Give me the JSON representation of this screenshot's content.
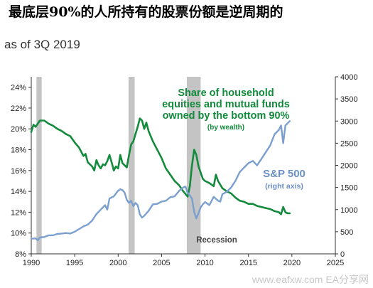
{
  "title": "最底层90%的人所持有的股票份额是逆周期的",
  "subtitle": "as of 3Q 2019",
  "watermark": "www.eafxw.com  EA分享网",
  "colors": {
    "green": "#138a3c",
    "blue": "#7b9fcf",
    "recession": "#c4c4c4",
    "axis": "#333333"
  },
  "chart_data": {
    "type": "line",
    "x_axis": {
      "range": [
        1990,
        2025
      ],
      "ticks": [
        1990,
        1995,
        2000,
        2005,
        2010,
        2015,
        2020,
        2025
      ]
    },
    "y_left": {
      "range": [
        8,
        25
      ],
      "ticks": [
        8,
        10,
        12,
        14,
        16,
        18,
        20,
        22,
        24
      ],
      "format": "%"
    },
    "y_right": {
      "range": [
        0,
        4000
      ],
      "ticks": [
        0,
        500,
        1000,
        1500,
        2000,
        2500,
        3000,
        3500,
        4000
      ]
    },
    "recessions": [
      [
        1990.6,
        1991.2
      ],
      [
        2001.2,
        2001.9
      ],
      [
        2007.9,
        2009.5
      ]
    ],
    "recession_label": "Recession",
    "annotations": {
      "green_label": [
        "Share of household",
        "equities and mutual funds",
        "owned by the bottom 90%"
      ],
      "green_sublabel": "(by wealth)",
      "blue_label": "S&P 500",
      "blue_sublabel": "(right axis)"
    },
    "series": [
      {
        "axis": "left",
        "x": [
          1990.0,
          1990.25,
          1990.5,
          1990.75,
          1991.0,
          1991.5,
          1992.0,
          1992.5,
          1993.0,
          1993.5,
          1994.0,
          1994.5,
          1995.0,
          1995.5,
          1996.0,
          1996.25,
          1996.5,
          1997.0,
          1997.25,
          1997.5,
          1997.75,
          1998.0,
          1998.25,
          1998.5,
          1998.75,
          1999.0,
          1999.25,
          1999.5,
          1999.75,
          2000.0,
          2000.25,
          2000.5,
          2000.75,
          2001.0,
          2001.25,
          2001.5,
          2001.75,
          2002.0,
          2002.25,
          2002.5,
          2002.75,
          2003.0,
          2003.25,
          2003.5,
          2004.0,
          2004.5,
          2005.0,
          2005.5,
          2006.0,
          2006.5,
          2007.0,
          2007.5,
          2008.0,
          2008.25,
          2008.5,
          2008.75,
          2009.0,
          2009.25,
          2009.5,
          2009.75,
          2010.0,
          2010.5,
          2011.0,
          2011.25,
          2011.5,
          2012.0,
          2012.5,
          2013.0,
          2013.5,
          2014.0,
          2014.5,
          2015.0,
          2015.5,
          2016.0,
          2016.5,
          2017.0,
          2017.5,
          2018.0,
          2018.5,
          2018.75,
          2019.0,
          2019.25,
          2019.5,
          2019.75
        ],
        "y": [
          19.7,
          20.4,
          20.2,
          20.5,
          20.8,
          20.8,
          20.5,
          20.3,
          20.0,
          19.8,
          19.5,
          19.3,
          18.7,
          18.2,
          17.4,
          17.6,
          16.8,
          16.4,
          16.0,
          17.0,
          16.5,
          16.2,
          16.6,
          16.5,
          16.9,
          17.5,
          16.8,
          16.0,
          16.4,
          16.2,
          17.5,
          16.7,
          16.5,
          16.3,
          17.5,
          18.5,
          18.8,
          19.5,
          20.2,
          21.0,
          20.8,
          20.0,
          20.6,
          19.8,
          18.8,
          18.0,
          17.2,
          16.2,
          15.6,
          15.0,
          14.6,
          14.0,
          13.5,
          14.5,
          16.5,
          18.0,
          17.5,
          16.4,
          15.8,
          15.2,
          15.0,
          14.8,
          14.5,
          15.6,
          15.0,
          14.3,
          14.0,
          13.8,
          13.4,
          13.1,
          13.0,
          12.8,
          12.8,
          12.6,
          12.5,
          12.4,
          12.3,
          12.1,
          12.0,
          11.8,
          12.5,
          12.0,
          11.9,
          11.9
        ]
      },
      {
        "axis": "right",
        "x": [
          1990.0,
          1990.5,
          1990.75,
          1991.0,
          1991.5,
          1992.0,
          1992.5,
          1993.0,
          1993.5,
          1994.0,
          1994.5,
          1995.0,
          1995.5,
          1996.0,
          1996.5,
          1997.0,
          1997.5,
          1998.0,
          1998.5,
          1998.75,
          1999.0,
          1999.5,
          2000.0,
          2000.25,
          2000.5,
          2000.75,
          2001.0,
          2001.25,
          2001.5,
          2001.75,
          2002.0,
          2002.25,
          2002.5,
          2002.75,
          2003.0,
          2003.5,
          2004.0,
          2004.5,
          2005.0,
          2005.5,
          2006.0,
          2006.5,
          2007.0,
          2007.5,
          2007.75,
          2008.0,
          2008.25,
          2008.5,
          2008.75,
          2009.0,
          2009.25,
          2009.5,
          2009.75,
          2010.0,
          2010.5,
          2011.0,
          2011.5,
          2011.75,
          2012.0,
          2012.5,
          2013.0,
          2013.5,
          2014.0,
          2014.5,
          2015.0,
          2015.5,
          2016.0,
          2016.5,
          2017.0,
          2017.5,
          2018.0,
          2018.5,
          2018.75,
          2019.0,
          2019.25,
          2019.5,
          2019.75
        ],
        "y": [
          340,
          350,
          310,
          370,
          380,
          420,
          420,
          450,
          460,
          470,
          460,
          500,
          560,
          620,
          660,
          750,
          900,
          1000,
          1100,
          1000,
          1250,
          1300,
          1430,
          1460,
          1440,
          1380,
          1220,
          1150,
          1200,
          1080,
          1150,
          1100,
          890,
          820,
          860,
          970,
          1120,
          1130,
          1180,
          1200,
          1280,
          1300,
          1420,
          1500,
          1520,
          1380,
          1320,
          1250,
          950,
          800,
          920,
          1050,
          1120,
          1170,
          1100,
          1290,
          1200,
          1180,
          1350,
          1400,
          1500,
          1650,
          1850,
          1950,
          2050,
          2100,
          2000,
          2150,
          2300,
          2450,
          2700,
          2800,
          2900,
          2500,
          2900,
          2950,
          3000
        ]
      }
    ]
  }
}
